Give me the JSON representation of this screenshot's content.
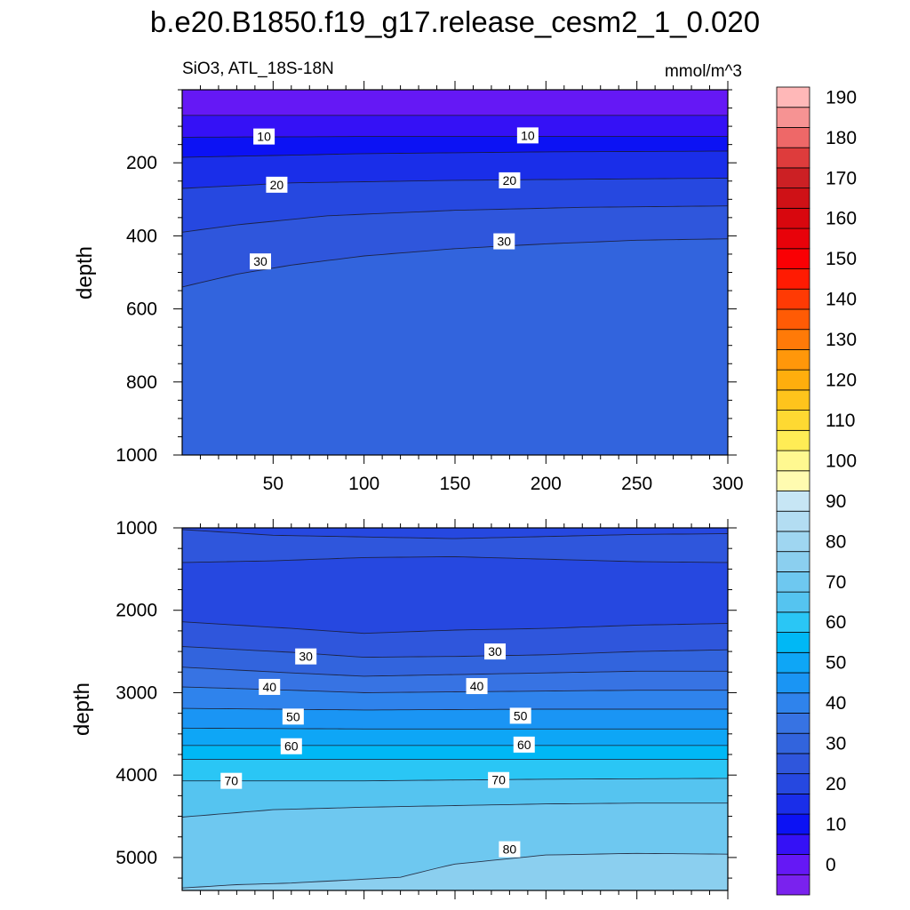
{
  "chart_data": {
    "type": "heatmap",
    "title": "b.e20.B1850.f19_g17.release_cesm2_1_0.020",
    "left_subtitle": "SiO3, ATL_18S-18N",
    "units": "mmol/m^3",
    "ylabel": "depth",
    "xlabel": "",
    "xlim": [
      0,
      300
    ],
    "x_ticks": [
      50,
      100,
      150,
      200,
      250,
      300
    ],
    "upper_panel": {
      "ylim": [
        0,
        1000
      ],
      "y_ticks": [
        200,
        400,
        600,
        800,
        1000
      ],
      "contour_interval": 5,
      "contour_lines": [
        {
          "level": 5,
          "x": [
            0,
            300
          ],
          "depth": [
            70,
            70
          ]
        },
        {
          "level": 10,
          "x": [
            0,
            100,
            200,
            300
          ],
          "depth": [
            130,
            128,
            128,
            128
          ]
        },
        {
          "level": 15,
          "x": [
            0,
            100,
            200,
            300
          ],
          "depth": [
            185,
            175,
            170,
            168
          ]
        },
        {
          "level": 20,
          "x": [
            0,
            60,
            150,
            220,
            300
          ],
          "depth": [
            270,
            255,
            248,
            245,
            242
          ]
        },
        {
          "level": 25,
          "x": [
            0,
            30,
            80,
            150,
            220,
            300
          ],
          "depth": [
            390,
            370,
            345,
            330,
            322,
            318
          ]
        },
        {
          "level": 30,
          "x": [
            0,
            30,
            60,
            100,
            150,
            200,
            250,
            300
          ],
          "depth": [
            540,
            505,
            480,
            455,
            435,
            422,
            412,
            408
          ]
        }
      ],
      "contour_labels": [
        {
          "text": "10",
          "x": 45,
          "depth": 128
        },
        {
          "text": "10",
          "x": 190,
          "depth": 125
        },
        {
          "text": "20",
          "x": 52,
          "depth": 260
        },
        {
          "text": "20",
          "x": 180,
          "depth": 248
        },
        {
          "text": "30",
          "x": 43,
          "depth": 470
        },
        {
          "text": "30",
          "x": 177,
          "depth": 415
        }
      ]
    },
    "lower_panel": {
      "ylim": [
        1000,
        5400
      ],
      "y_ticks": [
        1000,
        2000,
        3000,
        4000,
        5000
      ],
      "contour_interval": 5,
      "contour_lines": [
        {
          "level": 25,
          "x": [
            0,
            50,
            150,
            250,
            300
          ],
          "depth": [
            1020,
            1090,
            1130,
            1080,
            1070
          ]
        },
        {
          "level": 20,
          "x": [
            0,
            50,
            100,
            150,
            200,
            250,
            300
          ],
          "depth": [
            1420,
            1400,
            1360,
            1350,
            1380,
            1410,
            1420
          ]
        },
        {
          "level": 25,
          "x": [
            0,
            60,
            100,
            150,
            200,
            250,
            300
          ],
          "depth": [
            2140,
            2220,
            2280,
            2240,
            2220,
            2180,
            2160
          ]
        },
        {
          "level": 30,
          "x": [
            0,
            60,
            100,
            150,
            200,
            250,
            300
          ],
          "depth": [
            2440,
            2510,
            2570,
            2560,
            2540,
            2500,
            2480
          ]
        },
        {
          "level": 35,
          "x": [
            0,
            60,
            100,
            150,
            200,
            250,
            300
          ],
          "depth": [
            2690,
            2760,
            2800,
            2780,
            2760,
            2740,
            2740
          ]
        },
        {
          "level": 40,
          "x": [
            0,
            60,
            100,
            150,
            200,
            250,
            300
          ],
          "depth": [
            2930,
            2970,
            3000,
            2990,
            2980,
            2970,
            2970
          ]
        },
        {
          "level": 45,
          "x": [
            0,
            100,
            200,
            300
          ],
          "depth": [
            3190,
            3210,
            3200,
            3200
          ]
        },
        {
          "level": 50,
          "x": [
            0,
            100,
            200,
            300
          ],
          "depth": [
            3430,
            3440,
            3440,
            3440
          ]
        },
        {
          "level": 55,
          "x": [
            0,
            100,
            200,
            300
          ],
          "depth": [
            3640,
            3640,
            3640,
            3640
          ]
        },
        {
          "level": 60,
          "x": [
            0,
            100,
            200,
            300
          ],
          "depth": [
            3810,
            3810,
            3810,
            3810
          ]
        },
        {
          "level": 65,
          "x": [
            0,
            100,
            200,
            300
          ],
          "depth": [
            4070,
            4070,
            4050,
            4040
          ]
        },
        {
          "level": 70,
          "x": [
            0,
            50,
            100,
            150,
            200,
            250,
            300
          ],
          "depth": [
            4510,
            4420,
            4390,
            4370,
            4350,
            4340,
            4340
          ]
        },
        {
          "level": 75,
          "x": [
            0,
            30,
            60,
            120,
            140,
            150,
            200,
            250,
            300
          ],
          "depth": [
            5370,
            5330,
            5310,
            5240,
            5130,
            5080,
            4970,
            4950,
            4960
          ]
        }
      ],
      "contour_labels": [
        {
          "text": "30",
          "x": 68,
          "depth": 2560
        },
        {
          "text": "30",
          "x": 172,
          "depth": 2500
        },
        {
          "text": "40",
          "x": 48,
          "depth": 2930
        },
        {
          "text": "40",
          "x": 162,
          "depth": 2920
        },
        {
          "text": "50",
          "x": 61,
          "depth": 3290
        },
        {
          "text": "50",
          "x": 186,
          "depth": 3280
        },
        {
          "text": "60",
          "x": 60,
          "depth": 3650
        },
        {
          "text": "60",
          "x": 188,
          "depth": 3630
        },
        {
          "text": "70",
          "x": 27,
          "depth": 4070
        },
        {
          "text": "70",
          "x": 174,
          "depth": 4060
        },
        {
          "text": "80",
          "x": 180,
          "depth": 4900
        }
      ]
    },
    "colorbar": {
      "min": -5,
      "max": 195,
      "step": 5,
      "labels": [
        0,
        10,
        20,
        30,
        40,
        50,
        60,
        70,
        80,
        90,
        100,
        110,
        120,
        130,
        140,
        150,
        160,
        170,
        180,
        190
      ],
      "colors": [
        "#7a22ee",
        "#6518f5",
        "#3511f6",
        "#0c12f4",
        "#1a2ee9",
        "#2648e0",
        "#2f56dc",
        "#3264dd",
        "#3773e3",
        "#2f83ec",
        "#1a95f4",
        "#0ea6f6",
        "#00b8f5",
        "#2ac6f5",
        "#55c4f0",
        "#6ec8f0",
        "#8bcfef",
        "#9fd6f1",
        "#b3ddf2",
        "#c7e6f5",
        "#fffbb0",
        "#fff890",
        "#ffec55",
        "#fed932",
        "#fec41c",
        "#ffae0d",
        "#ff970a",
        "#ff7a08",
        "#ff5b05",
        "#ff3a04",
        "#ff1b02",
        "#fa0004",
        "#e8020a",
        "#d8070e",
        "#cf1116",
        "#cc2024",
        "#de3c3c",
        "#ee6868",
        "#f69393",
        "#ffb8b8"
      ]
    }
  }
}
